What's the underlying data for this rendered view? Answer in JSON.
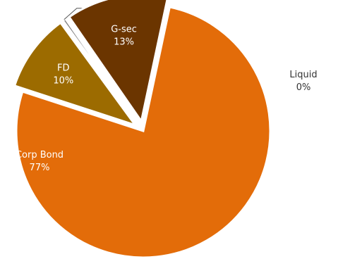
{
  "chart_data": {
    "type": "pie",
    "title": "",
    "slices": [
      {
        "name": "Corp Bond",
        "value": 77,
        "label": "77%",
        "color": "#E36C09"
      },
      {
        "name": "FD",
        "value": 10,
        "label": "10%",
        "color": "#9C6B00"
      },
      {
        "name": "Liquid",
        "value": 0.4,
        "label": "0%",
        "color": "#7F7F7F"
      },
      {
        "name": "G-sec",
        "value": 13,
        "label": "13%",
        "color": "#6B3500"
      }
    ],
    "legend": "none"
  }
}
